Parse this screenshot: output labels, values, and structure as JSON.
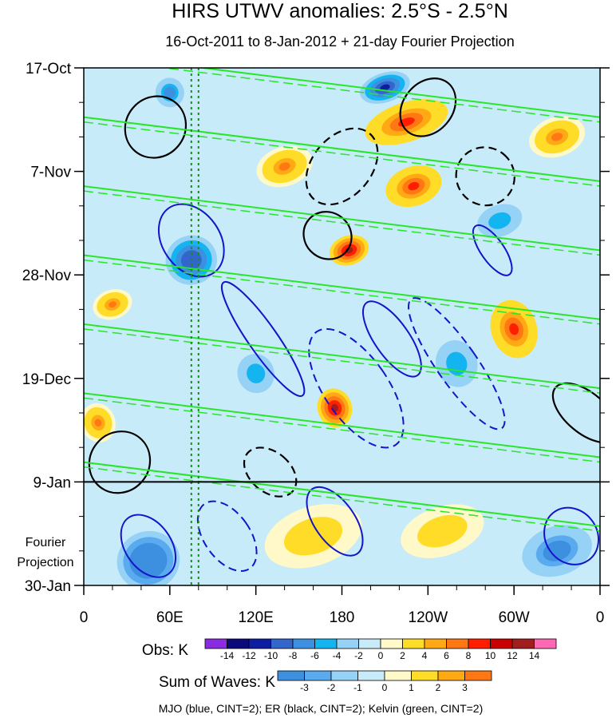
{
  "chart_data": {
    "type": "heatmap",
    "title": "HIRS UTWV anomalies: 2.5°S - 2.5°N",
    "subtitle": "16-Oct-2011 to 8-Jan-2012 + 21-day Fourier Projection",
    "x_axis": {
      "label": "",
      "ticks": [
        "0",
        "60E",
        "120E",
        "180",
        "120W",
        "60W",
        "0"
      ],
      "tick_longitudes_east": [
        0,
        60,
        120,
        180,
        240,
        300,
        360
      ],
      "range": [
        0,
        360
      ]
    },
    "y_axis": {
      "label": "",
      "ticks": [
        "17-Oct",
        "7-Nov",
        "28-Nov",
        "19-Dec",
        "9-Jan",
        "30-Jan"
      ],
      "tick_days": [
        0,
        21,
        42,
        63,
        84,
        105
      ],
      "range_days": [
        0,
        105
      ],
      "forecast_start_day": 84,
      "forecast_label": [
        "Fourier",
        "Projection"
      ]
    },
    "obs_colorbar": {
      "label": "Obs: K",
      "levels": [
        -14,
        -12,
        -10,
        -8,
        -6,
        -4,
        -2,
        0,
        2,
        4,
        6,
        8,
        10,
        12,
        14
      ],
      "colors": [
        "#8a2be2",
        "#0a0a78",
        "#0d1fa0",
        "#3366cc",
        "#3d8fe0",
        "#14b4f0",
        "#96d2f5",
        "#c8ebfa",
        "#fff8c8",
        "#ffdc28",
        "#ffaa14",
        "#ff7814",
        "#ff1e00",
        "#c80000",
        "#a01e1e",
        "#ff69b4"
      ]
    },
    "waves_colorbar": {
      "label": "Sum of Waves: K",
      "levels": [
        -3,
        -2,
        -1,
        0,
        1,
        2,
        3
      ],
      "colors": [
        "#3d8fe0",
        "#5aaaf0",
        "#96d2f5",
        "#c8ebfa",
        "#fff8c8",
        "#ffdc28",
        "#ffaa14",
        "#ff7814"
      ]
    },
    "reference_line_longitudes": [
      75,
      80
    ],
    "blobs": [
      {
        "lon": 210,
        "day": 4,
        "value": -12,
        "rx": 18,
        "ry": 3
      },
      {
        "lon": 225,
        "day": 11,
        "value": 8,
        "rx": 30,
        "ry": 4
      },
      {
        "lon": 185,
        "day": 37,
        "value": 12,
        "rx": 14,
        "ry": 3
      },
      {
        "lon": 175,
        "day": 69,
        "value": 12,
        "rx": 12,
        "ry": 4
      },
      {
        "lon": 300,
        "day": 53,
        "value": 8,
        "rx": 16,
        "ry": 6
      },
      {
        "lon": 230,
        "day": 24,
        "value": 8,
        "rx": 20,
        "ry": 4
      },
      {
        "lon": 75,
        "day": 39,
        "value": -10,
        "rx": 18,
        "ry": 5
      },
      {
        "lon": 60,
        "day": 5,
        "value": -8,
        "rx": 10,
        "ry": 3
      },
      {
        "lon": 330,
        "day": 14,
        "value": 6,
        "rx": 20,
        "ry": 4
      },
      {
        "lon": 10,
        "day": 72,
        "value": 6,
        "rx": 12,
        "ry": 4
      },
      {
        "lon": 45,
        "day": 100,
        "value": -5,
        "rx": 22,
        "ry": 6
      },
      {
        "lon": 330,
        "day": 98,
        "value": -4,
        "rx": 25,
        "ry": 5
      },
      {
        "lon": 120,
        "day": 62,
        "value": -6,
        "rx": 16,
        "ry": 5
      },
      {
        "lon": 260,
        "day": 60,
        "value": -6,
        "rx": 18,
        "ry": 6
      },
      {
        "lon": 160,
        "day": 95,
        "value": 2,
        "rx": 35,
        "ry": 6
      },
      {
        "lon": 250,
        "day": 94,
        "value": 2,
        "rx": 30,
        "ry": 5
      },
      {
        "lon": 140,
        "day": 20,
        "value": 6,
        "rx": 20,
        "ry": 4
      },
      {
        "lon": 290,
        "day": 31,
        "value": -6,
        "rx": 20,
        "ry": 4
      },
      {
        "lon": 20,
        "day": 48,
        "value": 6,
        "rx": 14,
        "ry": 3
      }
    ],
    "mjo_contours": [
      {
        "lon": 75,
        "day": 35,
        "rx": 20,
        "ry": 8,
        "dashed": false
      },
      {
        "lon": 125,
        "day": 55,
        "rx": 10,
        "ry": 14,
        "dashed": false
      },
      {
        "lon": 215,
        "day": 55,
        "rx": 12,
        "ry": 9,
        "dashed": false
      },
      {
        "lon": 285,
        "day": 37,
        "rx": 8,
        "ry": 6,
        "dashed": false
      },
      {
        "lon": 175,
        "day": 92,
        "rx": 14,
        "ry": 8,
        "dashed": false
      },
      {
        "lon": 45,
        "day": 97,
        "rx": 16,
        "ry": 7,
        "dashed": false
      },
      {
        "lon": 340,
        "day": 95,
        "rx": 18,
        "ry": 6,
        "dashed": false
      },
      {
        "lon": 190,
        "day": 65,
        "rx": 22,
        "ry": 14,
        "dashed": true
      },
      {
        "lon": 260,
        "day": 60,
        "rx": 14,
        "ry": 16,
        "dashed": true
      },
      {
        "lon": 100,
        "day": 95,
        "rx": 16,
        "ry": 8,
        "dashed": true
      }
    ],
    "er_contours": [
      {
        "lon": 180,
        "day": 20,
        "rx": 30,
        "ry": 6,
        "dashed": true
      },
      {
        "lon": 240,
        "day": 8,
        "rx": 22,
        "ry": 5,
        "dashed": false
      },
      {
        "lon": 50,
        "day": 12,
        "rx": 22,
        "ry": 6,
        "dashed": false
      },
      {
        "lon": 170,
        "day": 34,
        "rx": 16,
        "ry": 5,
        "dashed": false
      },
      {
        "lon": 350,
        "day": 70,
        "rx": 14,
        "ry": 8,
        "dashed": false
      },
      {
        "lon": 25,
        "day": 80,
        "rx": 22,
        "ry": 6,
        "dashed": false
      },
      {
        "lon": 130,
        "day": 82,
        "rx": 14,
        "ry": 6,
        "dashed": true
      },
      {
        "lon": 280,
        "day": 22,
        "rx": 20,
        "ry": 6,
        "dashed": true
      }
    ],
    "kelvin_bands_start_days": [
      -3,
      10,
      24,
      38,
      52,
      66,
      80
    ],
    "kelvin_band_slope_days": 13
  },
  "legend": {
    "caption": "MJO (blue, CINT=2); ER (black, CINT=2); Kelvin (green, CINT=2)"
  }
}
